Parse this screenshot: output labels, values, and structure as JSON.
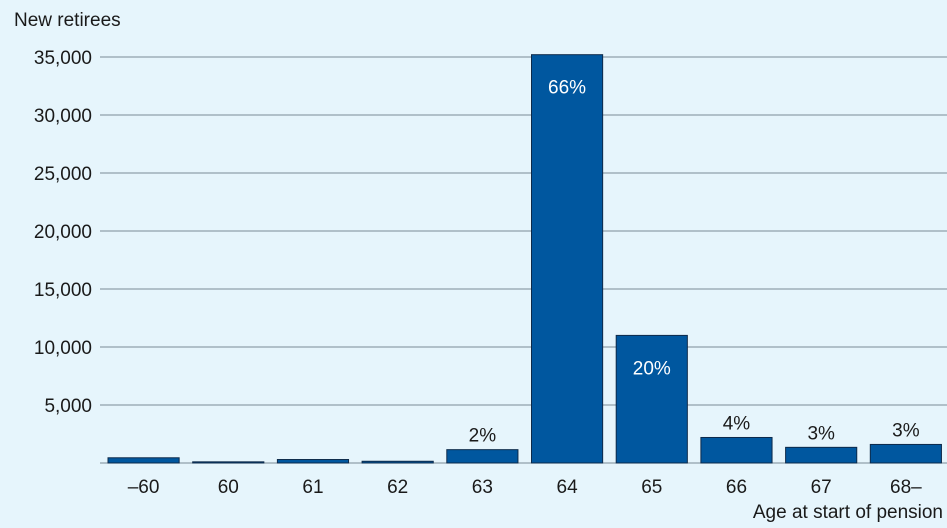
{
  "chart_data": {
    "type": "bar",
    "ylabel": "New retirees",
    "xlabel": "Age at start of pension",
    "categories": [
      "–60",
      "60",
      "61",
      "62",
      "63",
      "64",
      "65",
      "66",
      "67",
      "68–"
    ],
    "values": [
      450,
      100,
      300,
      150,
      1150,
      35200,
      11000,
      2200,
      1350,
      1600
    ],
    "data_labels": [
      "",
      "",
      "",
      "",
      "2%",
      "66%",
      "20%",
      "4%",
      "3%",
      "3%"
    ],
    "ylim": [
      0,
      35000
    ],
    "yticks": [
      5000,
      10000,
      15000,
      20000,
      25000,
      30000,
      35000
    ],
    "ytick_labels": [
      "5,000",
      "10,000",
      "15,000",
      "20,000",
      "25,000",
      "30,000",
      "35,000"
    ],
    "grid": true,
    "colors": {
      "bar": "#00579f",
      "bar_border": "#0d2a4a",
      "grid": "#7a8a96",
      "label_inside": "#ffffff",
      "label_outside": "#1a1a1a"
    }
  }
}
